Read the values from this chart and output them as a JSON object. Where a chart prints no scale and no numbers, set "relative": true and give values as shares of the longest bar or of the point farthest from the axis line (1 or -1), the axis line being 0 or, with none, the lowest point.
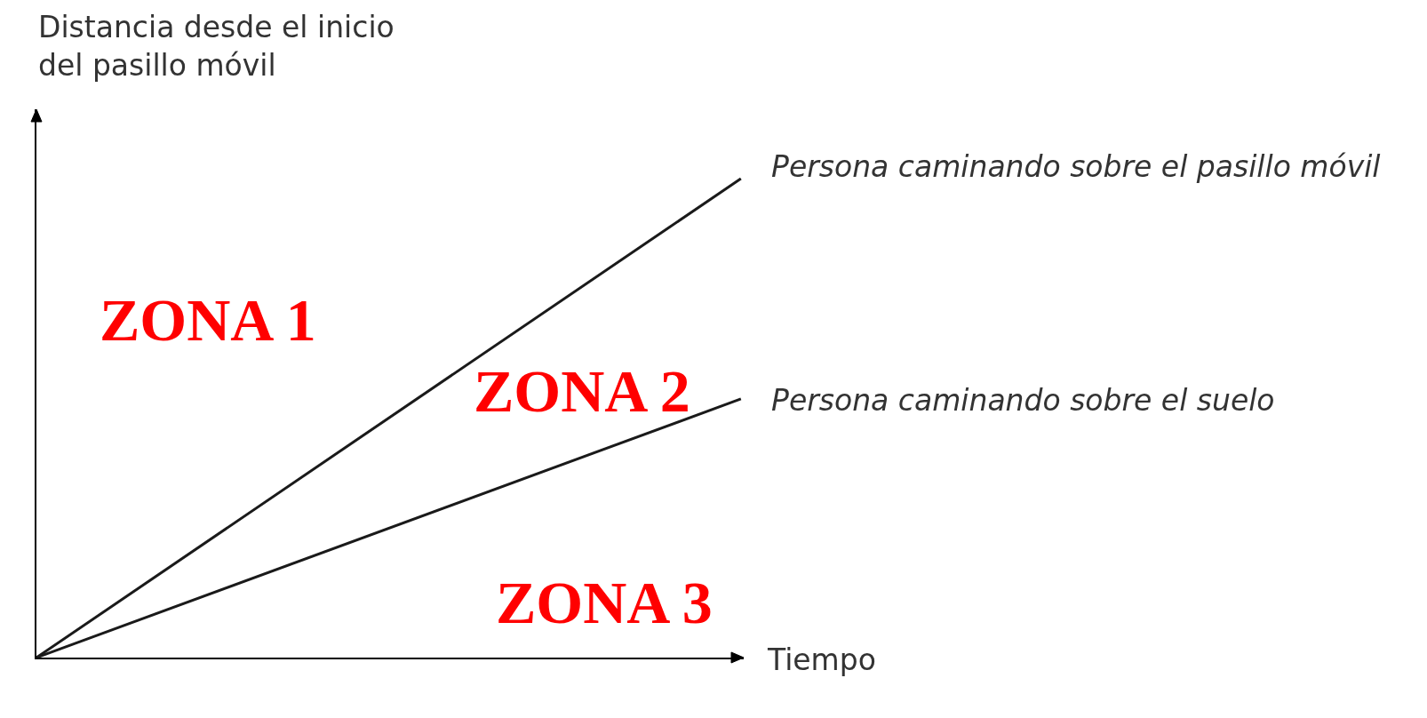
{
  "chart_data": {
    "type": "line",
    "relative": true,
    "ylabel": "Distancia desde el inicio\ndel pasillo móvil",
    "xlabel": "Tiempo",
    "categories": [
      null,
      null
    ],
    "series": [
      {
        "name": "Persona caminando sobre el pasillo móvil",
        "color": "#1a1a1a",
        "values": [
          0,
          1
        ]
      },
      {
        "name": "Persona caminando sobre el suelo",
        "color": "#1a1a1a",
        "values": [
          0,
          0.54
        ]
      }
    ],
    "annotations": [
      "ZONA 1",
      "ZONA 2",
      "ZONA 3"
    ]
  }
}
